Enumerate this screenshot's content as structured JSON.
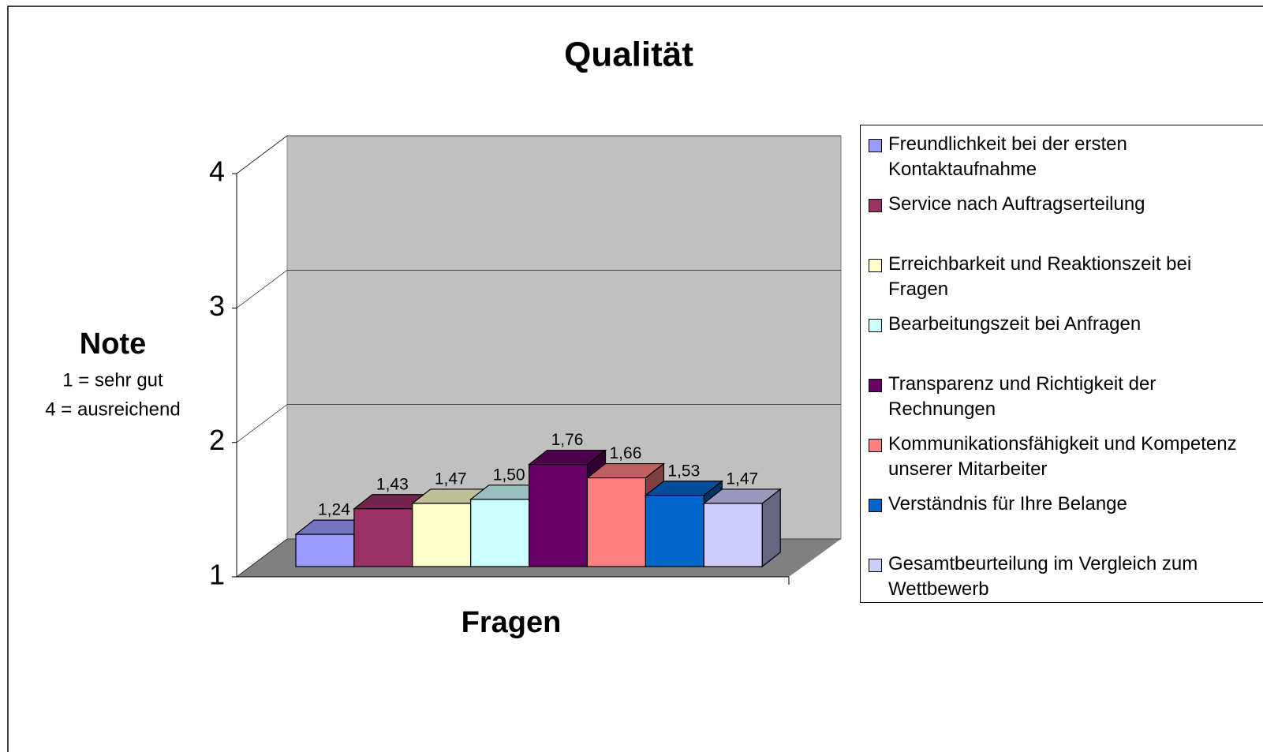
{
  "chart_data": {
    "type": "bar",
    "title": "Qualität",
    "y_label": "Note",
    "y_label_notes": [
      "1 = sehr gut",
      "4 = ausreichend"
    ],
    "x_label": "Fragen",
    "ylim": [
      1,
      4
    ],
    "yticks": [
      1,
      2,
      3,
      4
    ],
    "grid": true,
    "legend": "right",
    "series": [
      {
        "name": "Freundlichkeit bei der ersten Kontaktaufnahme",
        "color": "#9999ff",
        "values": [
          1.24
        ],
        "value_labels": [
          "1,24"
        ]
      },
      {
        "name": "Service nach Auftragserteilung",
        "color": "#993366",
        "values": [
          1.43
        ],
        "value_labels": [
          "1,43"
        ]
      },
      {
        "name": "Erreichbarkeit und Reaktionszeit bei Fragen",
        "color": "#ffffcc",
        "values": [
          1.47
        ],
        "value_labels": [
          "1,47"
        ]
      },
      {
        "name": "Bearbeitungszeit bei Anfragen",
        "color": "#ccffff",
        "values": [
          1.5
        ],
        "value_labels": [
          "1,50"
        ]
      },
      {
        "name": "Transparenz und Richtigkeit der Rechnungen",
        "color": "#660066",
        "values": [
          1.76
        ],
        "value_labels": [
          "1,76"
        ]
      },
      {
        "name": "Kommunikationsfähigkeit und Kompetenz unserer Mitarbeiter",
        "color": "#ff8080",
        "values": [
          1.66
        ],
        "value_labels": [
          "1,66"
        ]
      },
      {
        "name": "Verständnis für Ihre Belange",
        "color": "#0066cc",
        "values": [
          1.53
        ],
        "value_labels": [
          "1,53"
        ]
      },
      {
        "name": "Gesamtbeurteilung im Vergleich zum Wettbewerb",
        "color": "#ccccff",
        "values": [
          1.47
        ],
        "value_labels": [
          "1,47"
        ]
      }
    ]
  }
}
